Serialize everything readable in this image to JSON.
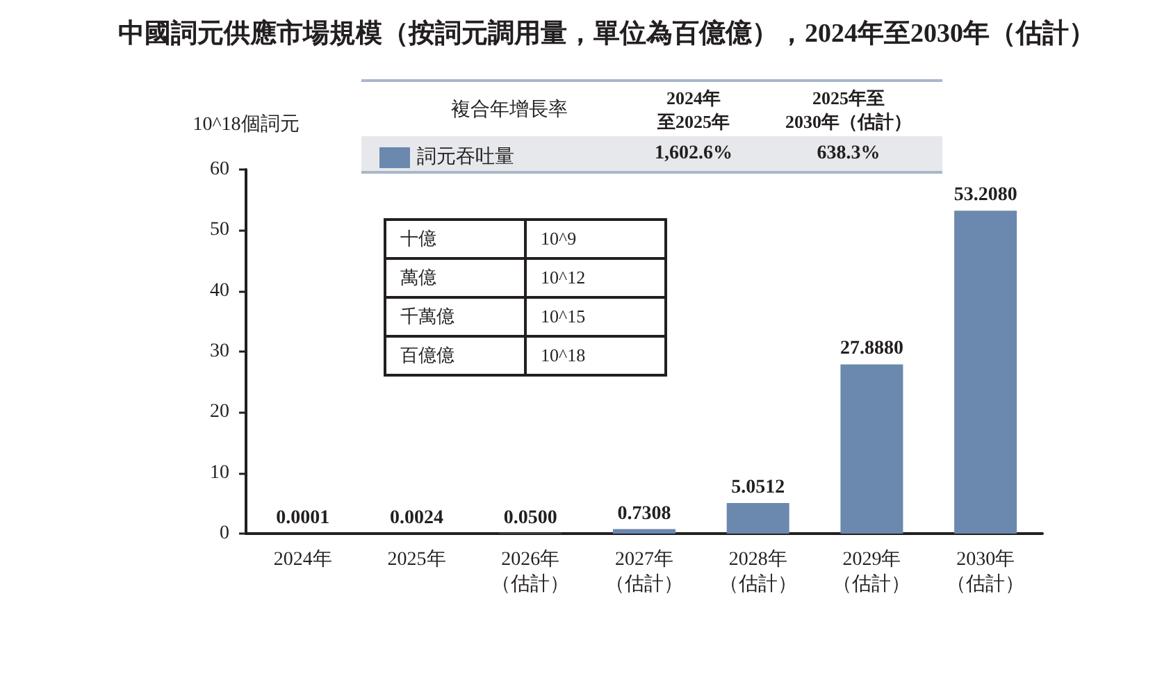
{
  "chart_data": {
    "type": "bar",
    "title": "中國詞元供應市場規模（按詞元調用量，單位為百億億），2024年至2030年（估計）",
    "ylabel": "10^18個詞元",
    "categories": [
      "2024年",
      "2025年",
      "2026年（估計）",
      "2027年（估計）",
      "2028年（估計）",
      "2029年（估計）",
      "2030年（估計）"
    ],
    "series": [
      {
        "name": "詞元吞吐量",
        "color": "#6b88ae",
        "values": [
          0.0001,
          0.0024,
          0.05,
          0.7308,
          5.0512,
          27.888,
          53.208
        ],
        "value_labels": [
          "0.0001",
          "0.0024",
          "0.0500",
          "0.7308",
          "5.0512",
          "27.8880",
          "53.2080"
        ]
      }
    ],
    "ylim": [
      0,
      60
    ],
    "yticks": [
      0,
      10,
      20,
      30,
      40,
      50,
      60
    ],
    "grid": false,
    "legend": "top",
    "annotations": [
      "複合年增長率",
      "2024年",
      "至2025年",
      "2025年至",
      "2030年（估計）",
      "1,602.6%",
      "638.3%",
      "十億",
      "10^9",
      "萬億",
      "10^12",
      "千萬億",
      "10^15",
      "百億億",
      "10^18"
    ]
  }
}
